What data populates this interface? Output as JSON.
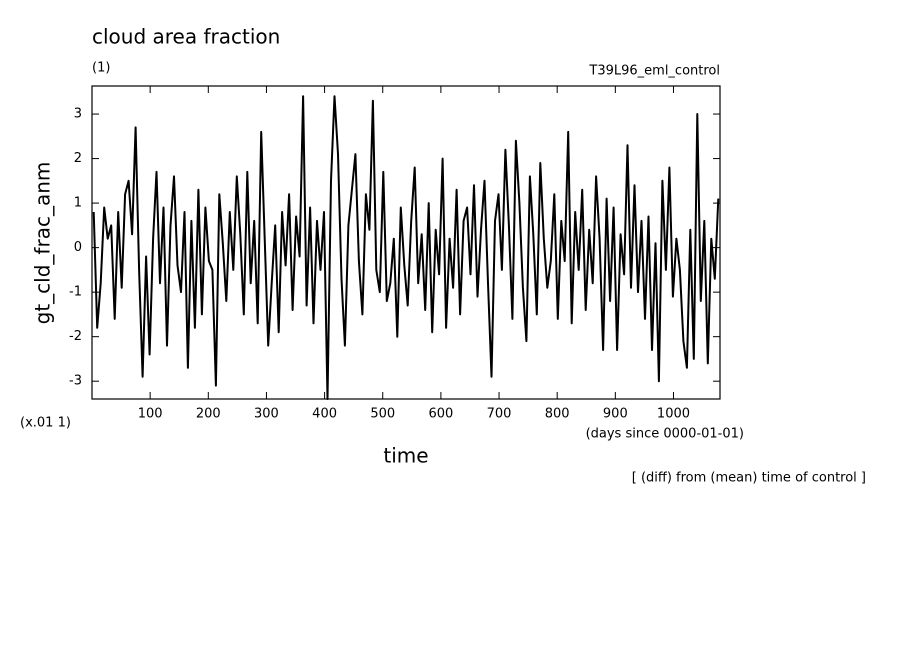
{
  "chart_data": {
    "type": "line",
    "title": "cloud area fraction",
    "subtitle": "(1)",
    "run_label": "T39L96_eml_control",
    "ylabel": "gt_cld_frac_anm",
    "y_unit_label": "(x.01 1)",
    "x_unit_label": "(days since 0000-01-01)",
    "xlabel": "time",
    "note": "[ (diff) from (mean) time of control ]",
    "xlim": [
      0,
      1080
    ],
    "ylim": [
      -3.4,
      3.63
    ],
    "xticks": [
      100,
      200,
      300,
      400,
      500,
      600,
      700,
      800,
      900,
      1000
    ],
    "yticks": [
      -3,
      -2,
      -1,
      0,
      1,
      2,
      3
    ],
    "x": [
      3,
      9,
      15,
      21,
      27,
      33,
      39,
      45,
      51,
      57,
      63,
      69,
      75,
      81,
      87,
      93,
      99,
      105,
      111,
      117,
      123,
      129,
      135,
      141,
      147,
      153,
      159,
      165,
      171,
      177,
      183,
      189,
      195,
      201,
      207,
      213,
      219,
      225,
      231,
      237,
      243,
      249,
      255,
      261,
      267,
      273,
      279,
      285,
      291,
      297,
      303,
      309,
      315,
      321,
      327,
      333,
      339,
      345,
      351,
      357,
      363,
      369,
      375,
      381,
      387,
      393,
      399,
      405,
      411,
      417,
      423,
      429,
      435,
      441,
      447,
      453,
      459,
      465,
      471,
      477,
      483,
      489,
      495,
      501,
      507,
      513,
      519,
      525,
      531,
      537,
      543,
      549,
      555,
      561,
      567,
      573,
      579,
      585,
      591,
      597,
      603,
      609,
      615,
      621,
      627,
      633,
      639,
      645,
      651,
      657,
      663,
      669,
      675,
      681,
      687,
      693,
      699,
      705,
      711,
      717,
      723,
      729,
      735,
      741,
      747,
      753,
      759,
      765,
      771,
      777,
      783,
      789,
      795,
      801,
      807,
      813,
      819,
      825,
      831,
      837,
      843,
      849,
      855,
      861,
      867,
      873,
      879,
      885,
      891,
      897,
      903,
      909,
      915,
      921,
      927,
      933,
      939,
      945,
      951,
      957,
      963,
      969,
      975,
      981,
      987,
      993,
      999,
      1005,
      1011,
      1017,
      1023,
      1029,
      1035,
      1041,
      1047,
      1053,
      1059,
      1065,
      1071,
      1077
    ],
    "series": [
      {
        "color": "#000000",
        "values": [
          0.8,
          -1.8,
          -0.8,
          0.9,
          0.2,
          0.5,
          -1.6,
          0.8,
          -0.9,
          1.2,
          1.5,
          0.3,
          2.7,
          -0.5,
          -2.9,
          -0.2,
          -2.4,
          0.2,
          1.7,
          -0.8,
          0.9,
          -2.2,
          0.5,
          1.6,
          -0.4,
          -1.0,
          0.8,
          -2.7,
          0.6,
          -1.8,
          1.3,
          -1.5,
          0.9,
          -0.3,
          -0.5,
          -3.1,
          1.2,
          0.1,
          -1.2,
          0.8,
          -0.5,
          1.6,
          0.3,
          -1.5,
          1.7,
          -0.8,
          0.6,
          -1.7,
          2.6,
          0.2,
          -2.2,
          -0.8,
          0.5,
          -1.9,
          0.8,
          -0.4,
          1.2,
          -1.4,
          0.7,
          -0.2,
          3.4,
          -1.3,
          0.9,
          -1.7,
          0.6,
          -0.5,
          0.8,
          -3.4,
          1.5,
          3.4,
          2.1,
          -0.7,
          -2.2,
          0.5,
          1.3,
          2.1,
          -0.3,
          -1.5,
          1.2,
          0.4,
          3.3,
          -0.5,
          -1.0,
          1.7,
          -1.2,
          -0.8,
          0.2,
          -2.0,
          0.9,
          -0.4,
          -1.3,
          0.6,
          1.8,
          -0.8,
          0.3,
          -1.4,
          1.0,
          -1.9,
          0.4,
          -0.6,
          2.0,
          -1.8,
          0.2,
          -0.9,
          1.3,
          -1.5,
          0.6,
          0.9,
          -0.6,
          1.4,
          -1.1,
          0.4,
          1.5,
          -0.8,
          -2.9,
          0.6,
          1.2,
          -0.5,
          2.2,
          0.5,
          -1.6,
          2.4,
          1.0,
          -0.9,
          -2.1,
          1.6,
          0.3,
          -1.5,
          1.9,
          0.2,
          -0.9,
          -0.3,
          1.2,
          -1.6,
          0.6,
          -0.3,
          2.6,
          -1.7,
          0.8,
          -0.5,
          1.3,
          -1.4,
          0.4,
          -0.8,
          1.6,
          0.2,
          -2.3,
          1.1,
          -1.2,
          0.9,
          -2.3,
          0.3,
          -0.6,
          2.3,
          -0.9,
          1.4,
          -1.0,
          0.6,
          -1.6,
          0.7,
          -2.3,
          0.1,
          -3.0,
          1.5,
          -0.5,
          1.8,
          -1.1,
          0.2,
          -0.5,
          -2.1,
          -2.7,
          0.4,
          -2.5,
          3.0,
          -1.2,
          0.6,
          -2.6,
          0.2,
          -0.7,
          1.1
        ]
      }
    ]
  }
}
